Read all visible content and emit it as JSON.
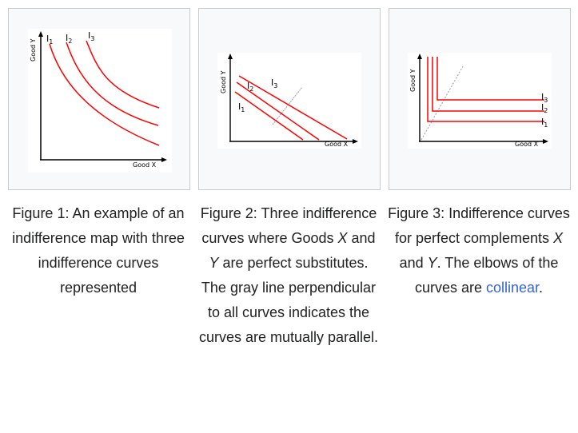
{
  "figures": [
    {
      "axis_x": "Good X",
      "axis_y": "Good Y",
      "curve_labels": [
        "I",
        "I",
        "I"
      ],
      "curve_subs": [
        "1",
        "2",
        "3"
      ],
      "caption": "Figure 1: An example of an indifference map with three indifference curves represented"
    },
    {
      "axis_x": "Good X",
      "axis_y": "Good Y",
      "curve_labels": [
        "I",
        "I",
        "I"
      ],
      "curve_subs": [
        "1",
        "2",
        "3"
      ],
      "caption_parts": [
        "Figure 2: Three indifference curves where Goods ",
        "X",
        " and ",
        "Y",
        " are perfect substitutes. The gray line perpendicular to all curves indicates the curves are mutually parallel."
      ]
    },
    {
      "axis_x": "Good X",
      "axis_y": "Good Y",
      "curve_labels": [
        "I",
        "I",
        "I"
      ],
      "curve_subs": [
        "3",
        "2",
        "1"
      ],
      "caption_parts": [
        "Figure 3: Indifference curves for perfect complements ",
        "X",
        " and ",
        "Y",
        ". The elbows of the curves are ",
        "collinear",
        "."
      ]
    }
  ],
  "colors": {
    "curve": "#ff0000",
    "gray_line": "#9a9a9a",
    "link": "#3366cc",
    "box_bg": "#f8f9fa",
    "box_border": "#c8ccd1"
  }
}
